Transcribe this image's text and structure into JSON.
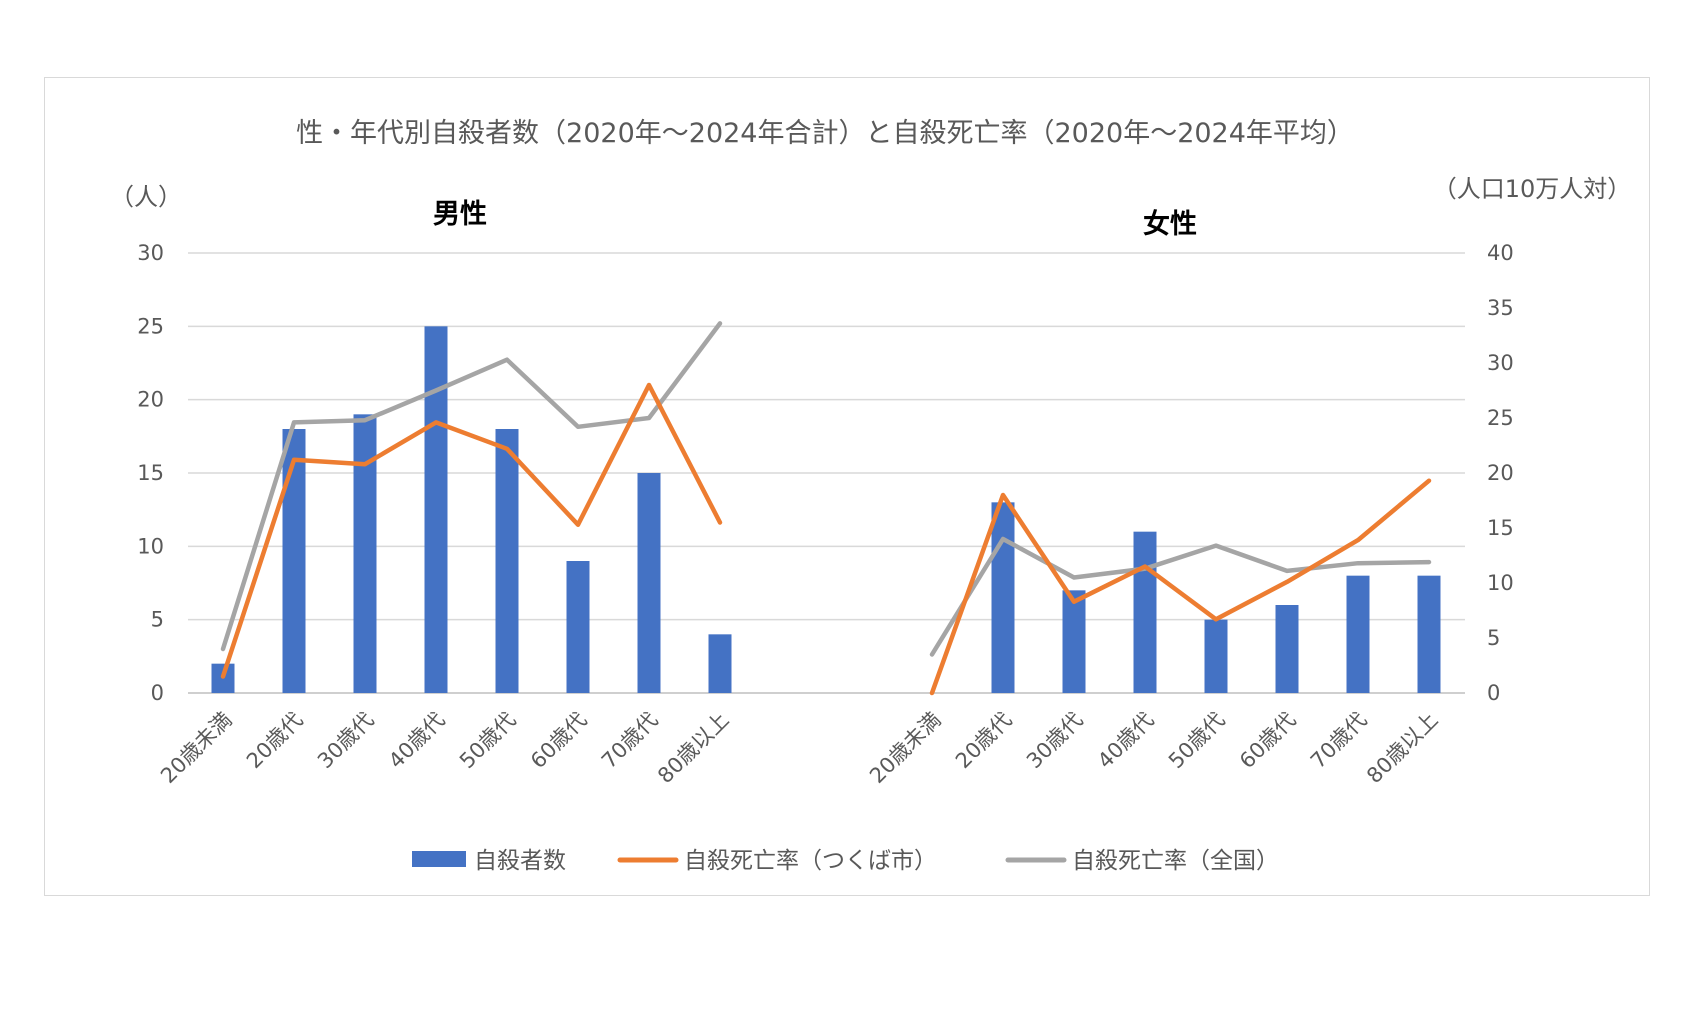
{
  "chart_data": {
    "type": "bar",
    "title": "性・年代別自殺者数（2020年～2024年合計）と自殺死亡率（2020年～2024年平均）",
    "left_axis_unit": "（人）",
    "right_axis_unit": "（人口10万人対）",
    "left_ylim": [
      0,
      30
    ],
    "left_ticks": [
      "0",
      "5",
      "10",
      "15",
      "20",
      "25",
      "30"
    ],
    "right_ylim": [
      0,
      40
    ],
    "right_ticks": [
      "0",
      "5",
      "10",
      "15",
      "20",
      "25",
      "30",
      "35",
      "40"
    ],
    "grid": true,
    "legend_position": "bottom",
    "categories": [
      "20歳未満",
      "20歳代",
      "30歳代",
      "40歳代",
      "50歳代",
      "60歳代",
      "70歳代",
      "80歳以上"
    ],
    "colors": {
      "bar": "#4472c4",
      "city": "#ed7d31",
      "national": "#a5a5a5"
    },
    "legend": {
      "bar": "自殺者数",
      "city": "自殺死亡率（つくば市）",
      "national": "自殺死亡率（全国）"
    },
    "panels": [
      {
        "title": "男性",
        "bars": [
          2,
          18,
          19,
          25,
          18,
          9,
          15,
          4
        ],
        "rate_city": [
          1.5,
          21.2,
          20.8,
          24.6,
          22.2,
          15.3,
          28.0,
          15.5
        ],
        "rate_national": [
          4.0,
          24.6,
          24.8,
          27.5,
          30.3,
          24.2,
          25.0,
          33.6
        ]
      },
      {
        "title": "女性",
        "bars": [
          0,
          13,
          7,
          11,
          5,
          6,
          8,
          8
        ],
        "rate_city": [
          0,
          18.0,
          8.3,
          11.5,
          6.7,
          10.1,
          13.9,
          19.3
        ],
        "rate_national": [
          3.5,
          14.0,
          10.5,
          11.3,
          13.4,
          11.1,
          11.8,
          11.9
        ]
      }
    ]
  }
}
